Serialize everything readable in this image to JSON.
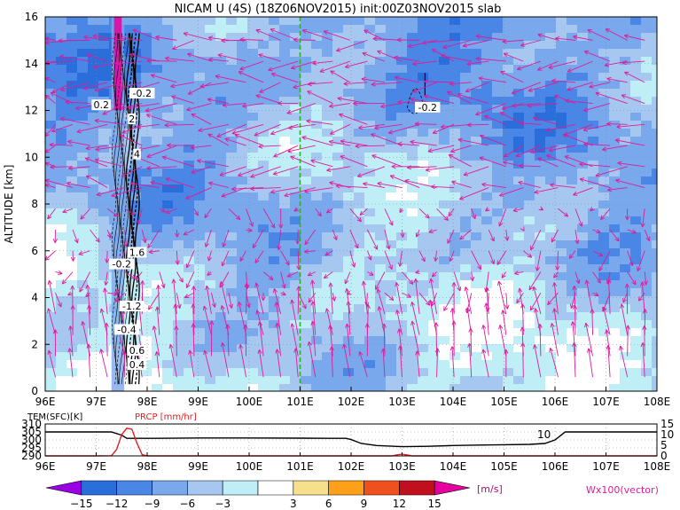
{
  "title": "NICAM U (4S) (18Z06NOV2015) init:00Z03NOV2015 slab",
  "chart_data": [
    {
      "type": "heatmap",
      "name": "zonal-wind-cross-section",
      "ylabel": "ALTITUDE [km]",
      "x_ticks": [
        "96E",
        "97E",
        "98E",
        "99E",
        "100E",
        "101E",
        "102E",
        "103E",
        "104E",
        "105E",
        "106E",
        "107E",
        "108E"
      ],
      "y_ticks": [
        "0",
        "2",
        "4",
        "6",
        "8",
        "10",
        "12",
        "14",
        "16"
      ],
      "xlim": [
        96,
        108
      ],
      "ylim": [
        0,
        16
      ],
      "grid": true,
      "reference_line_lon": 101,
      "contour_labels": [
        {
          "text": "0.2",
          "lon": 97.1,
          "alt": 12.2
        },
        {
          "text": "-0.2",
          "lon": 97.9,
          "alt": 12.7
        },
        {
          "text": "2",
          "lon": 97.7,
          "alt": 11.6
        },
        {
          "text": "4",
          "lon": 97.8,
          "alt": 10.1
        },
        {
          "text": "1.6",
          "lon": 97.8,
          "alt": 5.9
        },
        {
          "text": "-0.2",
          "lon": 97.5,
          "alt": 5.4
        },
        {
          "text": "-1.2",
          "lon": 97.7,
          "alt": 3.6
        },
        {
          "text": "-0.4",
          "lon": 97.6,
          "alt": 2.6
        },
        {
          "text": "0.6",
          "lon": 97.8,
          "alt": 1.7
        },
        {
          "text": "0.4",
          "lon": 97.8,
          "alt": 1.1
        },
        {
          "text": "-0.2",
          "lon": 103.5,
          "alt": 12.1
        }
      ],
      "colorbar": {
        "levels": [
          "-15",
          "-12",
          "-9",
          "-6",
          "-3",
          "3",
          "6",
          "9",
          "12",
          "15"
        ],
        "colors": [
          "#9A00E6",
          "#2A6EDC",
          "#4A86E6",
          "#7AA8EC",
          "#A6C8F0",
          "#BFEEF6",
          "#FFFFFF",
          "#F6E08C",
          "#FFA01A",
          "#F0501E",
          "#C0101E",
          "#E6009E"
        ],
        "unit": "[m/s]"
      },
      "vector_label": "Wx100(vector)",
      "vector_color": "#DD1C9A"
    },
    {
      "type": "line",
      "name": "surface-temperature-and-precip",
      "legend": [
        "TEM(SFC)[K]",
        "PRCP [mm/hr]"
      ],
      "x_ticks": [
        "96E",
        "97E",
        "98E",
        "99E",
        "100E",
        "101E",
        "102E",
        "103E",
        "104E",
        "105E",
        "106E",
        "107E",
        "108E"
      ],
      "left_y_ticks": [
        "290",
        "295",
        "300",
        "305",
        "310"
      ],
      "right_y_ticks": [
        "0",
        "5",
        "10",
        "15"
      ],
      "tem_ylim": [
        290,
        310
      ],
      "prcp_ylim": [
        0,
        15
      ],
      "annotation": "10",
      "series": [
        {
          "name": "TEM(SFC)[K]",
          "color": "#000000",
          "x": [
            96.0,
            96.5,
            97.0,
            97.3,
            97.5,
            97.6,
            97.8,
            98.0,
            98.2,
            99.0,
            100.0,
            101.0,
            101.5,
            101.9,
            102.0,
            102.2,
            102.5,
            103.0,
            103.5,
            104.0,
            104.5,
            105.0,
            105.5,
            105.8,
            106.0,
            106.2,
            107.0,
            108.0
          ],
          "y": [
            305.0,
            305.0,
            305.0,
            305.0,
            303.0,
            301.0,
            301.0,
            301.0,
            301.0,
            301.2,
            301.2,
            301.1,
            301.0,
            301.0,
            300.2,
            297.8,
            296.5,
            295.8,
            296.0,
            296.5,
            296.8,
            297.0,
            297.2,
            297.8,
            300.0,
            305.0,
            305.0,
            305.0
          ]
        },
        {
          "name": "PRCP [mm/hr]",
          "color": "#E02020",
          "x": [
            96.0,
            97.0,
            97.3,
            97.4,
            97.5,
            97.6,
            97.7,
            97.8,
            97.9,
            98.0,
            99.0,
            102.8,
            102.9,
            103.0,
            103.1,
            103.2,
            104.0,
            108.0
          ],
          "y": [
            0,
            0,
            0.1,
            3.0,
            10.0,
            13.0,
            12.5,
            6.0,
            0.6,
            0,
            0,
            0,
            0.5,
            0.8,
            0.4,
            0,
            0,
            0
          ]
        }
      ]
    }
  ]
}
